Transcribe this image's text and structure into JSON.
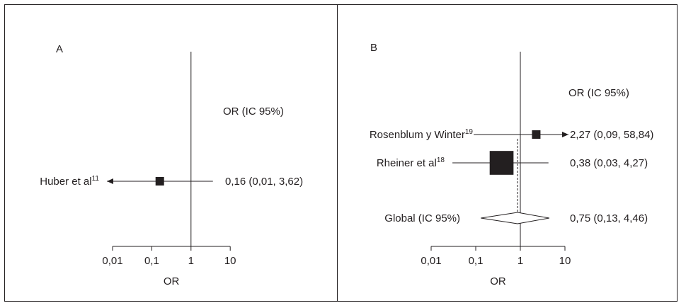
{
  "chart_data": [
    {
      "type": "forest",
      "panel_label": "A",
      "column_header": "OR (IC 95%)",
      "xlabel": "OR",
      "x_scale": "log",
      "xlim": [
        0.01,
        10
      ],
      "ticks": [
        {
          "value": 0.01,
          "label": "0,01"
        },
        {
          "value": 0.1,
          "label": "0,1"
        },
        {
          "value": 1,
          "label": "1"
        },
        {
          "value": 10,
          "label": "10"
        }
      ],
      "studies": [
        {
          "name": "Huber et al",
          "ref": "11",
          "or": 0.16,
          "ci_low": 0.01,
          "ci_high": 3.62,
          "label": "0,16 (0,01, 3,62)",
          "weight": 1,
          "arrow": "left"
        }
      ],
      "pooled": null
    },
    {
      "type": "forest",
      "panel_label": "B",
      "column_header": "OR (IC 95%)",
      "xlabel": "OR",
      "x_scale": "log",
      "xlim": [
        0.01,
        10
      ],
      "ticks": [
        {
          "value": 0.01,
          "label": "0,01"
        },
        {
          "value": 0.1,
          "label": "0,1"
        },
        {
          "value": 1,
          "label": "1"
        },
        {
          "value": 10,
          "label": "10"
        }
      ],
      "studies": [
        {
          "name": "Rosenblum y Winter",
          "ref": "19",
          "or": 2.27,
          "ci_low": 0.09,
          "ci_high": 58.84,
          "label": "2,27 (0,09, 58,84)",
          "weight": 1,
          "arrow": "right"
        },
        {
          "name": "Rheiner et al",
          "ref": "18",
          "or": 0.38,
          "ci_low": 0.03,
          "ci_high": 4.27,
          "label": "0,38 (0,03, 4,27)",
          "weight": 3.5,
          "arrow": null
        }
      ],
      "pooled": {
        "name": "Global (IC 95%)",
        "or": 0.75,
        "ci_low": 0.13,
        "ci_high": 4.46,
        "label": "0,75 (0,13, 4,46)"
      }
    }
  ]
}
